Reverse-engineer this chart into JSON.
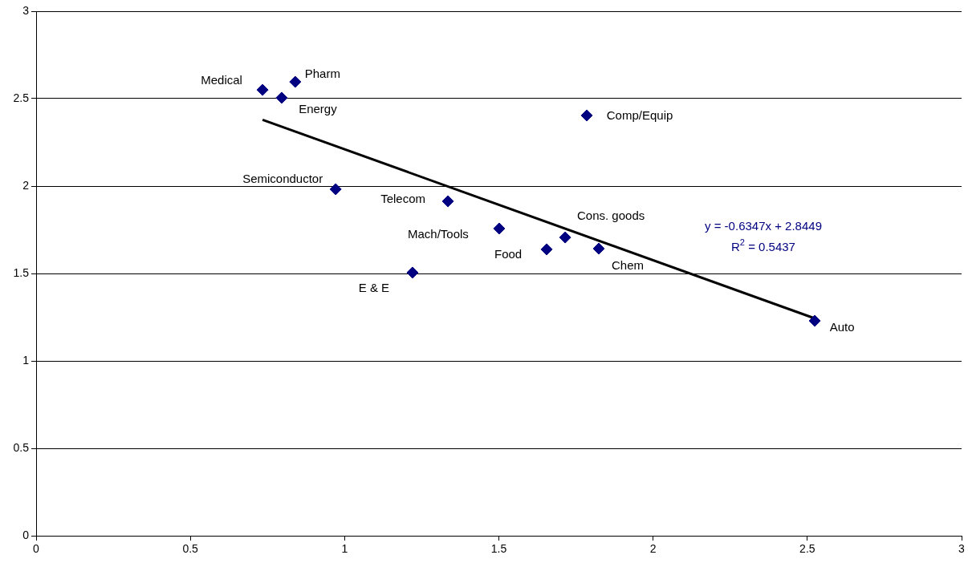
{
  "chart_data": {
    "type": "scatter",
    "marker": "diamond",
    "grid": "y",
    "legend": false,
    "xlim": [
      0,
      3
    ],
    "xticks": [
      0,
      0.5,
      1,
      1.5,
      2,
      2.5,
      3
    ],
    "ylim": [
      0,
      3
    ],
    "yticks": [
      0,
      0.5,
      1,
      1.5,
      2,
      2.5,
      3
    ],
    "series": [
      {
        "type": "scatter",
        "color": "#000080",
        "x": [
          0.734,
          0.84,
          0.796,
          1.785,
          0.971,
          1.335,
          1.501,
          1.715,
          1.655,
          1.824,
          1.22,
          2.524
        ],
        "values": [
          2.55,
          2.596,
          2.505,
          2.404,
          1.982,
          1.913,
          1.757,
          1.706,
          1.638,
          1.642,
          1.505,
          1.229
        ]
      },
      {
        "type": "line",
        "marker": "none",
        "color": "#000000",
        "x": [
          0.734,
          2.524
        ],
        "values": [
          2.379,
          1.243
        ]
      }
    ],
    "annotations": [
      {
        "text": "Medical",
        "x": 0.734,
        "y": 2.55
      },
      {
        "text": "Pharm",
        "x": 0.84,
        "y": 2.596
      },
      {
        "text": "Energy",
        "x": 0.796,
        "y": 2.505
      },
      {
        "text": "Comp/Equip",
        "x": 1.785,
        "y": 2.404
      },
      {
        "text": "Semiconductor",
        "x": 0.971,
        "y": 1.982
      },
      {
        "text": "Telecom",
        "x": 1.335,
        "y": 1.913
      },
      {
        "text": "Mach/Tools",
        "x": 1.501,
        "y": 1.757
      },
      {
        "text": "Cons. goods",
        "x": 1.715,
        "y": 1.706
      },
      {
        "text": "Food",
        "x": 1.655,
        "y": 1.638
      },
      {
        "text": "Chem",
        "x": 1.824,
        "y": 1.642
      },
      {
        "text": "E & E",
        "x": 1.22,
        "y": 1.505
      },
      {
        "text": "Auto",
        "x": 2.524,
        "y": 1.229
      },
      "y = -0.6347x + 2.8449",
      "R$^{2}$ = 0.5437"
    ]
  }
}
